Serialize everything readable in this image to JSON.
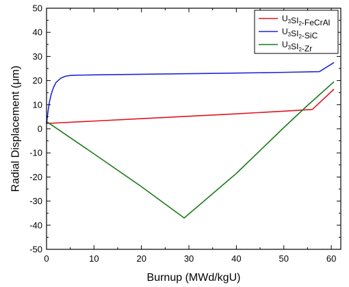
{
  "chart_data": {
    "type": "line",
    "xlabel": "Burnup (MWd/kgU)",
    "ylabel": "Radial Displacement (μm)",
    "xlim": [
      0,
      62
    ],
    "ylim": [
      -50,
      50
    ],
    "x_ticks": [
      0,
      10,
      20,
      30,
      40,
      50,
      60
    ],
    "y_ticks": [
      -50,
      -40,
      -30,
      -20,
      -10,
      0,
      10,
      20,
      30,
      40,
      50
    ],
    "grid": false,
    "legend_position": "top-right",
    "series": [
      {
        "name": "U3SI2-FeCrAl",
        "legend_base": "U",
        "legend_sub1": "3",
        "legend_mid": "SI",
        "legend_sub2": "2",
        "legend_suffix": "-FeCrAl",
        "color": "#e0141e",
        "points": [
          [
            0,
            2.2
          ],
          [
            10,
            3.2
          ],
          [
            20,
            4.2
          ],
          [
            30,
            5.2
          ],
          [
            40,
            6.2
          ],
          [
            50,
            7.3
          ],
          [
            56,
            8.0
          ],
          [
            60.5,
            16.3
          ]
        ]
      },
      {
        "name": "U3SI2-SiC",
        "legend_base": "U",
        "legend_sub1": "3",
        "legend_mid": "SI",
        "legend_sub2": "2",
        "legend_suffix": "-SiC",
        "color": "#1e26d6",
        "points": [
          [
            0,
            2.2
          ],
          [
            0.3,
            7.0
          ],
          [
            0.6,
            11.0
          ],
          [
            1.0,
            14.5
          ],
          [
            1.5,
            17.3
          ],
          [
            2.0,
            19.2
          ],
          [
            3.0,
            21.0
          ],
          [
            4.0,
            21.8
          ],
          [
            5.0,
            22.1
          ],
          [
            6.0,
            22.2
          ],
          [
            10,
            22.35
          ],
          [
            20,
            22.6
          ],
          [
            30,
            22.85
          ],
          [
            40,
            23.1
          ],
          [
            50,
            23.4
          ],
          [
            57.5,
            23.7
          ],
          [
            60.5,
            27.4
          ]
        ]
      },
      {
        "name": "U3SI2-Zr",
        "legend_base": "U",
        "legend_sub1": "3",
        "legend_mid": "SI",
        "legend_sub2": "2",
        "legend_suffix": "-Zr",
        "color": "#1a7a1a",
        "points": [
          [
            0,
            3.0
          ],
          [
            10,
            -10.4
          ],
          [
            20,
            -24.0
          ],
          [
            29,
            -37.0
          ],
          [
            40,
            -18.5
          ],
          [
            50,
            0.5
          ],
          [
            55,
            9.7
          ],
          [
            60.5,
            19.4
          ]
        ]
      }
    ]
  }
}
